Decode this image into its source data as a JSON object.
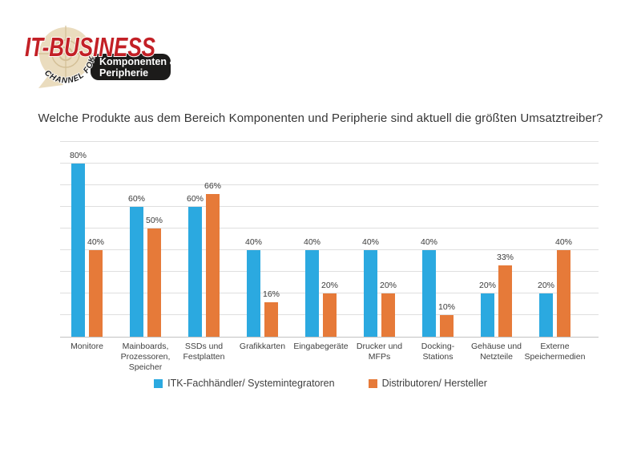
{
  "logo": {
    "brand": "IT-BUSINESS",
    "arc_text": "CHANNEL FOKUS",
    "badge_line1": "Komponenten &",
    "badge_line2": "Peripherie"
  },
  "colors": {
    "brand_red": "#c32026",
    "badge_bg": "#1c1b1a",
    "badge_text": "#ffffff",
    "bubble": "#eadcbe",
    "crosshair": "#d3bf96",
    "arc_text_color": "#1a1a1a",
    "grid": "#dfdfdf",
    "axis": "#c3c3c3",
    "label_text": "#3a3a3a"
  },
  "title": "Welche Produkte aus dem Bereich Komponenten und Peripherie sind aktuell die größten Umsatztreiber?",
  "chart_data": {
    "type": "bar",
    "title": "Welche Produkte aus dem Bereich Komponenten und Peripherie sind aktuell die größten Umsatztreiber?",
    "categories": [
      "Monitore",
      "Mainboards,\nProzessoren,\nSpeicher",
      "SSDs und\nFestplatten",
      "Grafikkarten",
      "Eingabegeräte",
      "Drucker und\nMFPs",
      "Docking-\nStations",
      "Gehäuse und\nNetzteile",
      "Externe\nSpeichermedien"
    ],
    "series": [
      {
        "name": "ITK-Fachhändler/ Systemintegratoren",
        "color": "#2ba9e0",
        "values": [
          80,
          60,
          60,
          40,
          40,
          40,
          40,
          20,
          20
        ]
      },
      {
        "name": "Distributoren/ Hersteller",
        "color": "#e67a39",
        "values": [
          40,
          50,
          66,
          16,
          20,
          20,
          10,
          33,
          40
        ]
      }
    ],
    "value_suffix": "%",
    "xlabel": "",
    "ylabel": "",
    "ylim": [
      0,
      90
    ],
    "grid_step": 10,
    "grid": true,
    "y_axis_labels_visible": false,
    "legend_position": "bottom"
  }
}
